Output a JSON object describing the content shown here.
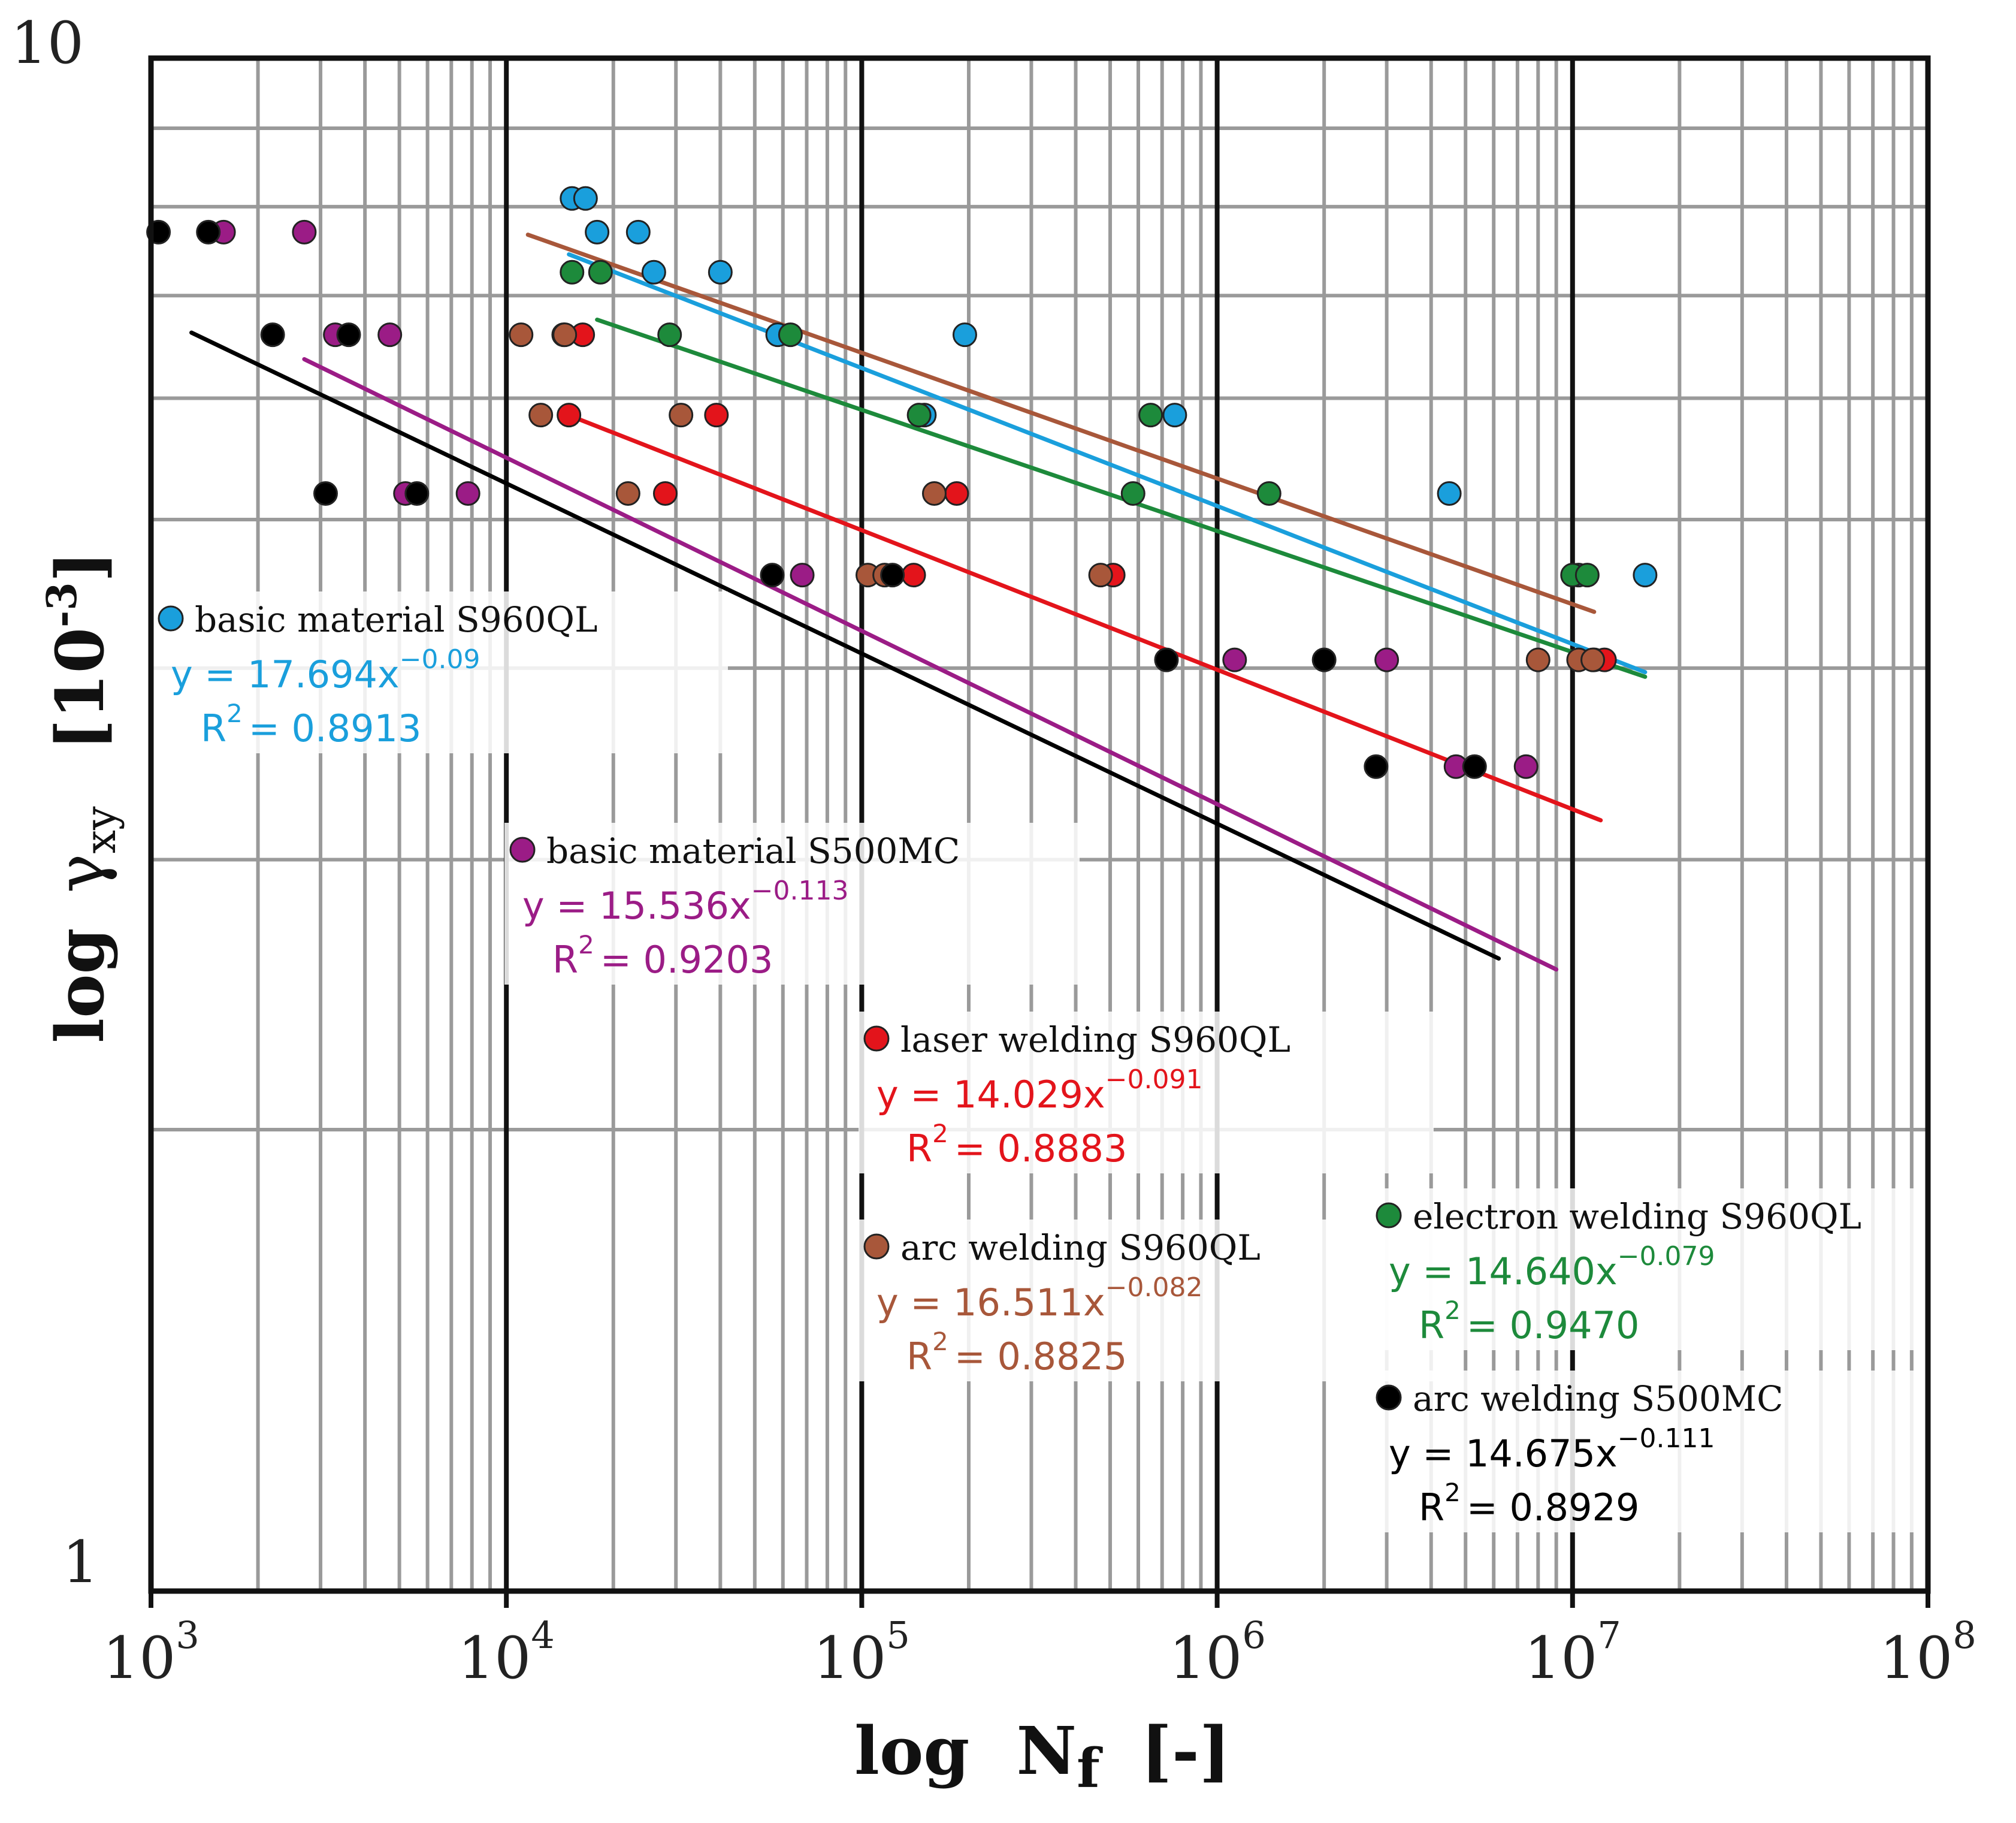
{
  "chart_data": {
    "type": "scatter",
    "xscale": "log",
    "yscale": "log",
    "xlim": [
      1000,
      100000000
    ],
    "ylim": [
      1,
      10
    ],
    "xlabel_parts": [
      "log",
      "N",
      "f",
      "[-]"
    ],
    "ylabel_parts": [
      "log",
      "γ",
      "xy",
      "[10",
      "-3",
      "]"
    ],
    "yticks": [
      {
        "value": 1,
        "label": "1"
      },
      {
        "value": 10,
        "label": "10"
      }
    ],
    "xticks": [
      {
        "value": 1000,
        "base": "10",
        "exp": "3"
      },
      {
        "value": 10000,
        "base": "10",
        "exp": "4"
      },
      {
        "value": 100000,
        "base": "10",
        "exp": "5"
      },
      {
        "value": 1000000,
        "base": "10",
        "exp": "6"
      },
      {
        "value": 10000000,
        "base": "10",
        "exp": "7"
      },
      {
        "value": 100000000,
        "base": "10",
        "exp": "8"
      }
    ],
    "grid": true,
    "series": [
      {
        "name": "basic material S960QL",
        "color": "#1a9fdc",
        "equation": {
          "prefix": "y = 17.694x",
          "exp": "−0.09",
          "r2_value": "= 0.8913"
        },
        "trend": {
          "a": 17.694,
          "b": -0.09,
          "x_from": 15000,
          "x_to": 16000000
        },
        "points": [
          [
            15300,
            8.1
          ],
          [
            16700,
            8.1
          ],
          [
            18000,
            7.7
          ],
          [
            23500,
            7.7
          ],
          [
            26000,
            7.25
          ],
          [
            40000,
            7.25
          ],
          [
            58000,
            6.6
          ],
          [
            150000,
            5.85
          ],
          [
            195000,
            6.6
          ],
          [
            760000,
            5.85
          ],
          [
            4500000,
            5.2
          ],
          [
            10400000,
            4.6
          ],
          [
            16000000,
            4.6
          ]
        ]
      },
      {
        "name": "basic material S500MC",
        "color": "#9b1c86",
        "equation": {
          "prefix": "y = 15.536x",
          "exp": "−0.113",
          "r2_value": "= 0.9203"
        },
        "trend": {
          "a": 15.536,
          "b": -0.113,
          "x_from": 2700,
          "x_to": 9000000
        },
        "points": [
          [
            1600,
            7.7
          ],
          [
            2700,
            7.7
          ],
          [
            3300,
            6.6
          ],
          [
            4700,
            6.6
          ],
          [
            7800,
            5.2
          ],
          [
            5200,
            5.2
          ],
          [
            68000,
            4.6
          ],
          [
            1120000,
            4.05
          ],
          [
            3000000,
            4.05
          ],
          [
            4700000,
            3.45
          ],
          [
            7400000,
            3.45
          ]
        ]
      },
      {
        "name": "laser welding S960QL",
        "color": "#e3141b",
        "equation": {
          "prefix": "y = 14.029x",
          "exp": "−0.091",
          "r2_value": "= 0.8883"
        },
        "trend": {
          "a": 14.029,
          "b": -0.091,
          "x_from": 14500,
          "x_to": 12000000
        },
        "points": [
          [
            15000,
            5.85
          ],
          [
            14500,
            6.6
          ],
          [
            16400,
            6.6
          ],
          [
            28000,
            5.2
          ],
          [
            39000,
            5.85
          ],
          [
            140000,
            4.6
          ],
          [
            185000,
            5.2
          ],
          [
            510000,
            4.6
          ],
          [
            11500000,
            4.05
          ],
          [
            12300000,
            4.05
          ]
        ]
      },
      {
        "name": "arc welding S960QL",
        "color": "#a8573a",
        "equation": {
          "prefix": "y = 16.511x",
          "exp": "−0.082",
          "r2_value": "= 0.8825"
        },
        "trend": {
          "a": 16.511,
          "b": -0.082,
          "x_from": 11500,
          "x_to": 11500000
        },
        "points": [
          [
            11000,
            6.6
          ],
          [
            12500,
            5.85
          ],
          [
            14600,
            6.6
          ],
          [
            22000,
            5.2
          ],
          [
            31000,
            5.85
          ],
          [
            104000,
            4.6
          ],
          [
            116000,
            4.6
          ],
          [
            160000,
            5.2
          ],
          [
            470000,
            4.6
          ],
          [
            8000000,
            4.05
          ],
          [
            10400000,
            4.05
          ],
          [
            11400000,
            4.05
          ]
        ]
      },
      {
        "name": "electron welding S960QL",
        "color": "#1d8a3b",
        "equation": {
          "prefix": "y = 14.640x",
          "exp": "−0.079",
          "r2_value": "= 0.9470"
        },
        "trend": {
          "a": 14.64,
          "b": -0.079,
          "x_from": 18000,
          "x_to": 16000000
        },
        "points": [
          [
            15300,
            7.25
          ],
          [
            18400,
            7.25
          ],
          [
            28800,
            6.6
          ],
          [
            63000,
            6.6
          ],
          [
            145000,
            5.85
          ],
          [
            580000,
            5.2
          ],
          [
            650000,
            5.85
          ],
          [
            1400000,
            5.2
          ],
          [
            10000000,
            4.6
          ],
          [
            11000000,
            4.6
          ]
        ]
      },
      {
        "name": "arc welding S500MC",
        "color": "#000000",
        "equation": {
          "prefix": "y = 14.675x",
          "exp": "−0.111",
          "r2_value": "= 0.8929"
        },
        "trend": {
          "a": 14.675,
          "b": -0.111,
          "x_from": 1300,
          "x_to": 6200000
        },
        "points": [
          [
            1050,
            7.7
          ],
          [
            1450,
            7.7
          ],
          [
            2200,
            6.6
          ],
          [
            3600,
            6.6
          ],
          [
            3100,
            5.2
          ],
          [
            5600,
            5.2
          ],
          [
            56000,
            4.6
          ],
          [
            122000,
            4.6
          ],
          [
            720000,
            4.05
          ],
          [
            2000000,
            4.05
          ],
          [
            2800000,
            3.45
          ],
          [
            5300000,
            3.45
          ]
        ]
      }
    ]
  }
}
